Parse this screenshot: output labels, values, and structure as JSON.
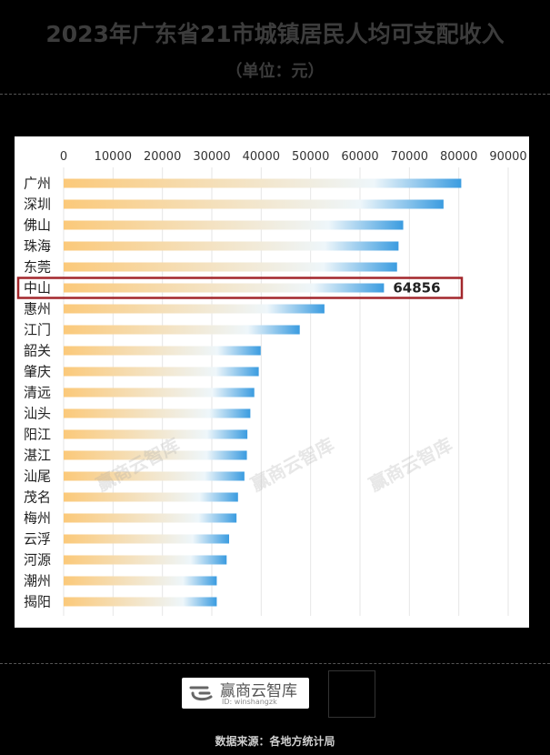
{
  "header": {
    "title": "2023年广东省21市城镇居民人均可支配收入",
    "subtitle": "（单位：元）"
  },
  "footer": {
    "brand": "赢商云智库",
    "brand_id": "ID: winshangzk",
    "source": "数据来源：各地方统计局"
  },
  "watermarks": [
    "赢商云智库",
    "赢商云智库",
    "赢商云智库"
  ],
  "colors": {
    "bar_start": "#fbc97a",
    "bar_mid": "#eef6fa",
    "bar_end": "#3b9ce0",
    "highlight_border": "#a3272c",
    "grid": "#e6e6e6"
  },
  "chart_data": {
    "type": "bar",
    "orientation": "horizontal",
    "title": "2023年广东省21市城镇居民人均可支配收入",
    "subtitle": "（单位：元）",
    "xlim": [
      0,
      90000
    ],
    "ticks": [
      "0",
      "10000",
      "20000",
      "30000",
      "40000",
      "50000",
      "60000",
      "70000",
      "80000",
      "90000"
    ],
    "grid": true,
    "categories": [
      "广州",
      "深圳",
      "佛山",
      "珠海",
      "东莞",
      "中山",
      "惠州",
      "江门",
      "韶关",
      "肇庆",
      "清远",
      "汕头",
      "阳江",
      "湛江",
      "汕尾",
      "茂名",
      "梅州",
      "云浮",
      "河源",
      "潮州",
      "揭阳"
    ],
    "values": [
      80501,
      76910,
      68750,
      67800,
      67500,
      64856,
      52800,
      47800,
      39900,
      39500,
      38600,
      37800,
      37200,
      37100,
      36600,
      35300,
      35000,
      33500,
      33000,
      31000,
      31000
    ],
    "highlight": {
      "category": "中山",
      "label": "64856"
    }
  }
}
